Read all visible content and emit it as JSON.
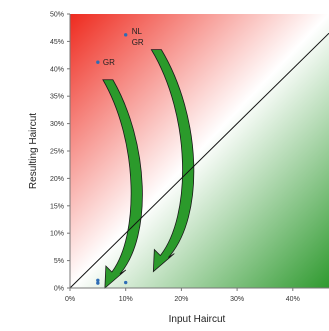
{
  "chart_data": {
    "type": "scatter",
    "xlabel": "Input Haircut",
    "ylabel": "Resulting Haircut",
    "xlim": [
      0,
      0.465
    ],
    "ylim": [
      0,
      0.5
    ],
    "x_ticks": [
      {
        "value": 0.0,
        "label": "0%"
      },
      {
        "value": 0.1,
        "label": "10%"
      },
      {
        "value": 0.2,
        "label": "20%"
      },
      {
        "value": 0.3,
        "label": "30%"
      },
      {
        "value": 0.4,
        "label": "40%"
      }
    ],
    "y_ticks": [
      {
        "value": 0.0,
        "label": "0%"
      },
      {
        "value": 0.05,
        "label": "5%"
      },
      {
        "value": 0.1,
        "label": "10%"
      },
      {
        "value": 0.15,
        "label": "15%"
      },
      {
        "value": 0.2,
        "label": "20%"
      },
      {
        "value": 0.25,
        "label": "25%"
      },
      {
        "value": 0.3,
        "label": "30%"
      },
      {
        "value": 0.35,
        "label": "35%"
      },
      {
        "value": 0.4,
        "label": "40%"
      },
      {
        "value": 0.45,
        "label": "45%"
      },
      {
        "value": 0.5,
        "label": "50%"
      }
    ],
    "series": [
      {
        "points": [
          {
            "x": 0.05,
            "y": 0.412
          },
          {
            "x": 0.1,
            "y": 0.462
          },
          {
            "x": 0.05,
            "y": 0.014
          },
          {
            "x": 0.05,
            "y": 0.009
          },
          {
            "x": 0.1,
            "y": 0.01
          }
        ]
      }
    ],
    "point_labels": [
      {
        "x": 0.05,
        "y": 0.412,
        "text": "GR"
      },
      {
        "x": 0.1,
        "y": 0.462,
        "text": "NL"
      },
      {
        "x": 0.1,
        "y": 0.462,
        "text": "GR"
      }
    ],
    "reference_line": {
      "from": [
        0,
        0
      ],
      "to": [
        0.465,
        0.465
      ]
    },
    "background": {
      "top_left_color": "#ee2a1e",
      "bottom_right_color": "#2f9a2f",
      "mid_color": "#ffffff"
    },
    "arrows": [
      {
        "from": [
          0.068,
          0.38
        ],
        "to": [
          0.068,
          0.0
        ]
      },
      {
        "from": [
          0.155,
          0.435
        ],
        "to": [
          0.155,
          0.03
        ]
      }
    ],
    "point_color": "#2d6cb5",
    "arrow_fill": "#2b9a2b",
    "grid": false
  }
}
